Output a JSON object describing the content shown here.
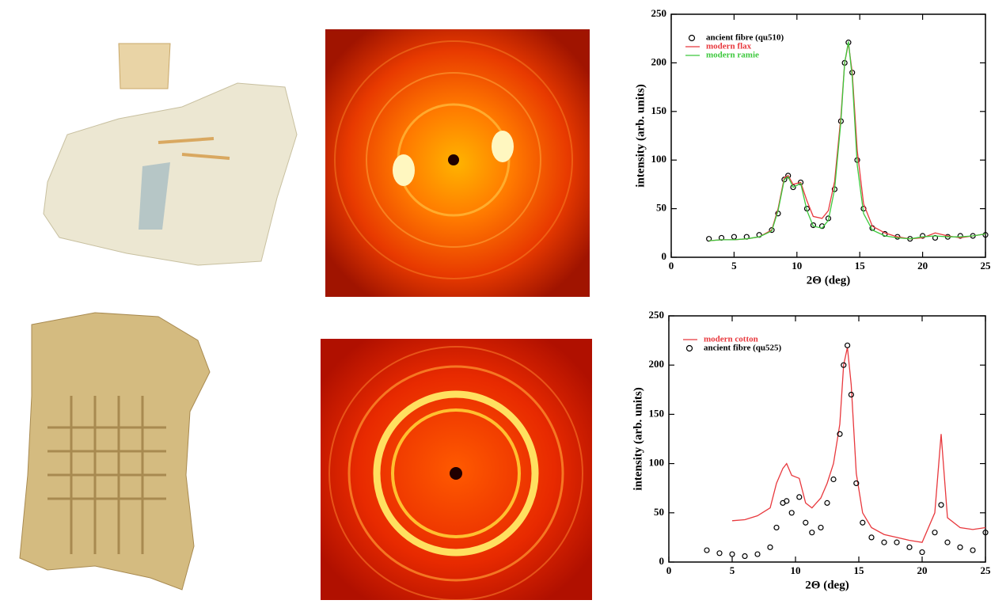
{
  "chart_data": [
    {
      "type": "line",
      "x_label": "2Θ (deg)",
      "y_label": "intensity (arb. units)",
      "x": [
        3,
        4,
        5,
        6,
        7,
        8,
        8.5,
        9,
        9.3,
        9.7,
        10.3,
        10.8,
        11.3,
        12,
        12.5,
        13,
        13.5,
        13.8,
        14.1,
        14.4,
        14.8,
        15.3,
        16,
        17,
        18,
        19,
        20,
        21,
        22,
        23,
        24,
        25
      ],
      "series": [
        {
          "name": "ancient fibre (qu510)",
          "color": "#000000",
          "style": "markers",
          "values": [
            19,
            20,
            21,
            21,
            23,
            28,
            45,
            80,
            84,
            72,
            77,
            50,
            33,
            32,
            40,
            70,
            140,
            200,
            221,
            190,
            100,
            50,
            30,
            24,
            21,
            19,
            22,
            20,
            21,
            22,
            22,
            23
          ]
        },
        {
          "name": "modern flax",
          "color": "#e8383d",
          "style": "line",
          "values": [
            17,
            18,
            18,
            19,
            21,
            28,
            50,
            82,
            84,
            75,
            77,
            58,
            42,
            40,
            48,
            78,
            145,
            200,
            220,
            190,
            110,
            55,
            32,
            25,
            21,
            19,
            20,
            25,
            22,
            20,
            22,
            24
          ]
        },
        {
          "name": "modern ramie",
          "color": "#3cc83c",
          "style": "line",
          "values": [
            17,
            18,
            18,
            19,
            21,
            27,
            48,
            80,
            83,
            72,
            76,
            48,
            32,
            30,
            38,
            70,
            140,
            200,
            222,
            185,
            95,
            45,
            28,
            22,
            20,
            19,
            21,
            22,
            21,
            21,
            22,
            24
          ]
        }
      ],
      "xlim": [
        0,
        25
      ],
      "xticks": [
        0,
        5,
        10,
        15,
        20,
        25
      ],
      "ylim": [
        0,
        250
      ],
      "yticks": [
        0,
        50,
        100,
        150,
        200,
        250
      ],
      "legend": "upper left"
    },
    {
      "type": "line",
      "x_label": "2Θ (deg)",
      "y_label": "intensity (arb. units)",
      "x": [
        3,
        4,
        5,
        6,
        7,
        8,
        8.5,
        9,
        9.3,
        9.7,
        10.3,
        10.8,
        11.3,
        12,
        12.5,
        13,
        13.5,
        13.8,
        14.1,
        14.4,
        14.8,
        15.3,
        16,
        17,
        18,
        19,
        20,
        21,
        21.5,
        22,
        23,
        24,
        25
      ],
      "series": [
        {
          "name": "modern cotton",
          "color": "#e8383d",
          "style": "line",
          "values": [
            null,
            null,
            42,
            43,
            47,
            55,
            80,
            95,
            100,
            88,
            85,
            60,
            55,
            65,
            80,
            100,
            140,
            200,
            218,
            180,
            90,
            50,
            35,
            28,
            25,
            22,
            20,
            50,
            130,
            45,
            35,
            33,
            35
          ]
        },
        {
          "name": "ancient fibre (qu525)",
          "color": "#000000",
          "style": "markers",
          "values": [
            12,
            9,
            8,
            6,
            8,
            15,
            35,
            60,
            62,
            50,
            66,
            40,
            30,
            35,
            60,
            84,
            130,
            200,
            220,
            170,
            80,
            40,
            25,
            20,
            20,
            15,
            10,
            30,
            58,
            20,
            15,
            12,
            30
          ]
        }
      ],
      "xlim": [
        0,
        25
      ],
      "xticks": [
        0,
        5,
        10,
        15,
        20,
        25
      ],
      "ylim": [
        0,
        250
      ],
      "yticks": [
        0,
        50,
        100,
        150,
        200,
        250
      ],
      "legend": "upper left"
    }
  ]
}
